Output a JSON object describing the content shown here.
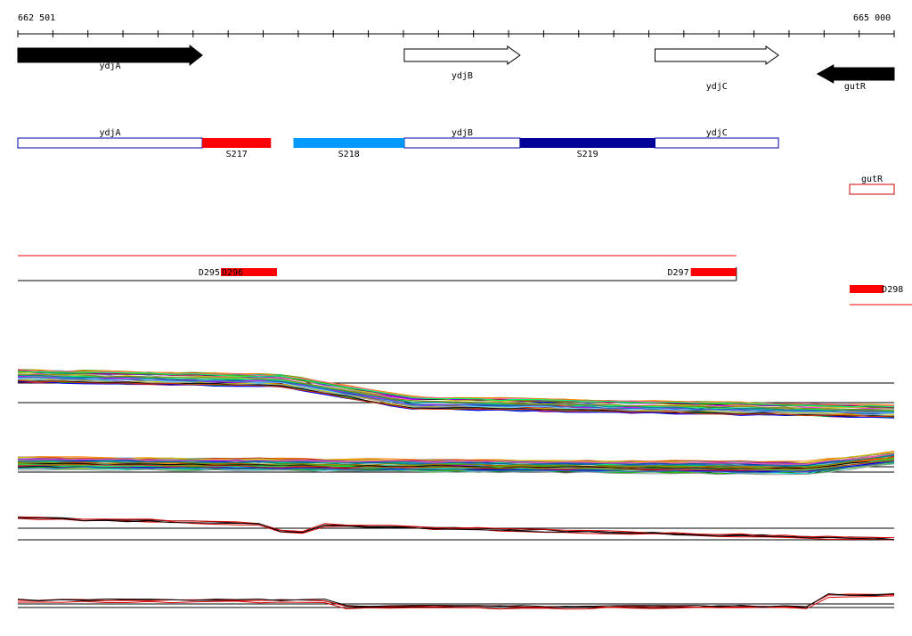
{
  "ruler": {
    "start_label": "662 501",
    "end_label": "665 000",
    "start_bp": 662501,
    "end_bp": 665000
  },
  "genes": [
    {
      "name": "ydjA",
      "strand": "+",
      "start_bp": 662501,
      "end_bp": 663027,
      "filled": true
    },
    {
      "name": "ydjB",
      "strand": "+",
      "start_bp": 663603,
      "end_bp": 663933,
      "filled": false
    },
    {
      "name": "ydjC",
      "strand": "+",
      "start_bp": 664318,
      "end_bp": 664670,
      "filled": false
    },
    {
      "name": "gutR",
      "strand": "-",
      "start_bp": 664776,
      "end_bp": 665000,
      "filled": true
    }
  ],
  "transcripts": [
    {
      "name": "ydjA",
      "start_bp": 662501,
      "end_bp": 663027,
      "color": "#0000aa"
    },
    {
      "name": "ydjB",
      "start_bp": 663603,
      "end_bp": 663933,
      "color": "#0000aa"
    },
    {
      "name": "ydjC",
      "start_bp": 664318,
      "end_bp": 664670,
      "color": "#0000aa"
    },
    {
      "name": "gutR",
      "start_bp": 664873,
      "end_bp": 665000,
      "color": "#cc0000"
    }
  ],
  "segments": [
    {
      "name": "S217",
      "start_bp": 663027,
      "end_bp": 663223,
      "color": "#ff0000"
    },
    {
      "name": "S218",
      "start_bp": 663287,
      "end_bp": 663603,
      "color": "#0099ff"
    },
    {
      "name": "S219",
      "start_bp": 663933,
      "end_bp": 664318,
      "color": "#000099"
    }
  ],
  "promoters": [
    {
      "name": "D295",
      "start_bp": 663080,
      "end_bp": 663100
    },
    {
      "name": "D296",
      "start_bp": 663080,
      "end_bp": 663240
    },
    {
      "name": "D297",
      "start_bp": 664420,
      "end_bp": 664550
    },
    {
      "name": "D298",
      "start_bp": 664873,
      "end_bp": 664970
    }
  ],
  "colors": {
    "gene_fill": "#000000",
    "transcript_stroke": "#0000aa",
    "promoter_fill": "#ff0000",
    "line": "#ff0000",
    "axis": "#000000"
  },
  "profile_panels": [
    {
      "name": "panel-1",
      "style": "multicolor",
      "series_count": 40
    },
    {
      "name": "panel-2",
      "style": "multicolor",
      "series_count": 40
    },
    {
      "name": "panel-3",
      "style": "red-black"
    },
    {
      "name": "panel-4",
      "style": "red-black"
    }
  ]
}
